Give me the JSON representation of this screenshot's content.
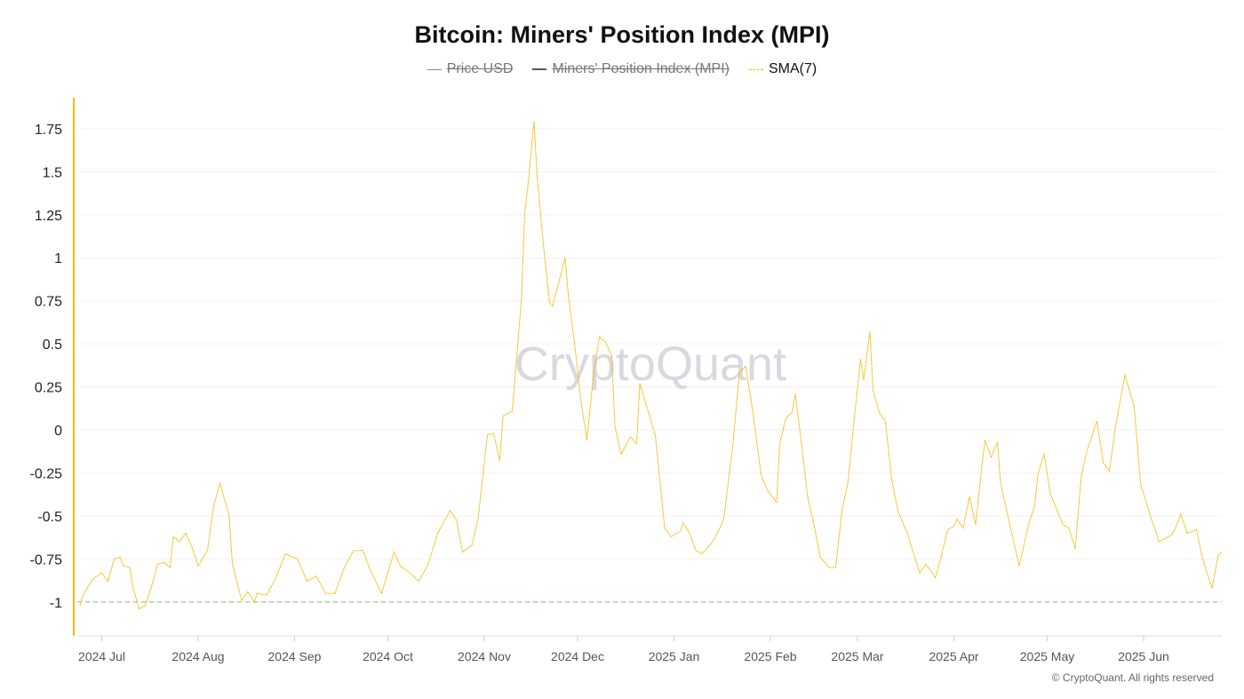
{
  "chart_data": {
    "type": "line",
    "title": "Bitcoin: Miners' Position Index (MPI)",
    "legend": [
      {
        "name": "Price USD",
        "hidden": true,
        "color": "#8a8a8a"
      },
      {
        "name": "Miners' Position Index (MPI)",
        "hidden": true,
        "color": "#555b66"
      },
      {
        "name": "SMA(7)",
        "hidden": false,
        "color": "#f5b800"
      }
    ],
    "legend_placement": "top-center",
    "x_start_date": "2024-06-24",
    "x_unit": "days since start",
    "x_ticks": [
      {
        "day": 7,
        "label": "2024 Jul"
      },
      {
        "day": 38,
        "label": "2024 Aug"
      },
      {
        "day": 69,
        "label": "2024 Sep"
      },
      {
        "day": 99,
        "label": "2024 Oct"
      },
      {
        "day": 130,
        "label": "2024 Nov"
      },
      {
        "day": 160,
        "label": "2024 Dec"
      },
      {
        "day": 191,
        "label": "2025 Jan"
      },
      {
        "day": 222,
        "label": "2025 Feb"
      },
      {
        "day": 250,
        "label": "2025 Mar"
      },
      {
        "day": 281,
        "label": "2025 Apr"
      },
      {
        "day": 311,
        "label": "2025 May"
      },
      {
        "day": 342,
        "label": "2025 Jun"
      }
    ],
    "y_ticks": [
      1.75,
      1.5,
      1.25,
      1,
      0.75,
      0.5,
      0.25,
      0,
      -0.25,
      -0.5,
      -0.75,
      -1
    ],
    "y_tick_labels": [
      "1.75",
      "1.5",
      "1.25",
      "1",
      "0.75",
      "0.5",
      "0.25",
      "0",
      "-0.25",
      "-0.5",
      "-0.75",
      "-1"
    ],
    "ylim": [
      -1.2,
      1.93
    ],
    "xlim": [
      0,
      367
    ],
    "grid": true,
    "threshold": {
      "value": -1,
      "color": "#7cc47f",
      "style": "dashed"
    },
    "series": [
      {
        "name": "SMA(7)",
        "color": "#f5b800",
        "points": [
          [
            0,
            -1.02
          ],
          [
            1,
            -0.96
          ],
          [
            4,
            -0.87
          ],
          [
            7,
            -0.83
          ],
          [
            9,
            -0.88
          ],
          [
            11,
            -0.75
          ],
          [
            13,
            -0.74
          ],
          [
            14,
            -0.79
          ],
          [
            16,
            -0.8
          ],
          [
            17,
            -0.91
          ],
          [
            19,
            -1.04
          ],
          [
            21,
            -1.02
          ],
          [
            23,
            -0.91
          ],
          [
            25,
            -0.78
          ],
          [
            27,
            -0.77
          ],
          [
            29,
            -0.8
          ],
          [
            30,
            -0.62
          ],
          [
            32,
            -0.65
          ],
          [
            34,
            -0.6
          ],
          [
            36,
            -0.68
          ],
          [
            38,
            -0.79
          ],
          [
            41,
            -0.7
          ],
          [
            43,
            -0.44
          ],
          [
            45,
            -0.31
          ],
          [
            48,
            -0.5
          ],
          [
            49,
            -0.78
          ],
          [
            52,
            -0.99
          ],
          [
            54,
            -0.94
          ],
          [
            56,
            -1.0
          ],
          [
            57,
            -0.95
          ],
          [
            60,
            -0.96
          ],
          [
            63,
            -0.86
          ],
          [
            66,
            -0.72
          ],
          [
            70,
            -0.75
          ],
          [
            73,
            -0.88
          ],
          [
            76,
            -0.85
          ],
          [
            79,
            -0.95
          ],
          [
            82,
            -0.95
          ],
          [
            85,
            -0.8
          ],
          [
            88,
            -0.7
          ],
          [
            91,
            -0.7
          ],
          [
            93,
            -0.8
          ],
          [
            97,
            -0.95
          ],
          [
            101,
            -0.71
          ],
          [
            103,
            -0.79
          ],
          [
            106,
            -0.83
          ],
          [
            109,
            -0.88
          ],
          [
            112,
            -0.78
          ],
          [
            115,
            -0.6
          ],
          [
            119,
            -0.47
          ],
          [
            121,
            -0.52
          ],
          [
            123,
            -0.71
          ],
          [
            126,
            -0.67
          ],
          [
            128,
            -0.52
          ],
          [
            131,
            -0.03
          ],
          [
            133,
            -0.02
          ],
          [
            135,
            -0.18
          ],
          [
            136,
            0.08
          ],
          [
            139,
            0.11
          ],
          [
            140,
            0.33
          ],
          [
            142,
            0.77
          ],
          [
            143,
            1.26
          ],
          [
            144,
            1.41
          ],
          [
            146,
            1.79
          ],
          [
            147,
            1.47
          ],
          [
            149,
            1.08
          ],
          [
            151,
            0.74
          ],
          [
            152,
            0.72
          ],
          [
            154,
            0.86
          ],
          [
            156,
            1.0
          ],
          [
            157,
            0.79
          ],
          [
            159,
            0.51
          ],
          [
            161,
            0.18
          ],
          [
            163,
            -0.06
          ],
          [
            165,
            0.3
          ],
          [
            167,
            0.54
          ],
          [
            169,
            0.51
          ],
          [
            171,
            0.43
          ],
          [
            172,
            0.02
          ],
          [
            174,
            -0.14
          ],
          [
            177,
            -0.04
          ],
          [
            179,
            -0.08
          ],
          [
            180,
            0.27
          ],
          [
            182,
            0.15
          ],
          [
            185,
            -0.03
          ],
          [
            188,
            -0.57
          ],
          [
            190,
            -0.62
          ],
          [
            193,
            -0.59
          ],
          [
            194,
            -0.54
          ],
          [
            196,
            -0.6
          ],
          [
            198,
            -0.7
          ],
          [
            200,
            -0.72
          ],
          [
            203,
            -0.66
          ],
          [
            205,
            -0.6
          ],
          [
            207,
            -0.52
          ],
          [
            210,
            -0.08
          ],
          [
            212,
            0.33
          ],
          [
            214,
            0.37
          ],
          [
            216,
            0.15
          ],
          [
            219,
            -0.26
          ],
          [
            221,
            -0.35
          ],
          [
            224,
            -0.42
          ],
          [
            225,
            -0.08
          ],
          [
            227,
            0.07
          ],
          [
            229,
            0.1
          ],
          [
            230,
            0.21
          ],
          [
            232,
            -0.08
          ],
          [
            234,
            -0.39
          ],
          [
            236,
            -0.55
          ],
          [
            238,
            -0.74
          ],
          [
            241,
            -0.8
          ],
          [
            243,
            -0.8
          ],
          [
            245,
            -0.47
          ],
          [
            247,
            -0.3
          ],
          [
            249,
            0.07
          ],
          [
            251,
            0.41
          ],
          [
            252,
            0.29
          ],
          [
            254,
            0.57
          ],
          [
            255,
            0.23
          ],
          [
            257,
            0.1
          ],
          [
            259,
            0.05
          ],
          [
            261,
            -0.29
          ],
          [
            263,
            -0.47
          ],
          [
            266,
            -0.6
          ],
          [
            270,
            -0.83
          ],
          [
            272,
            -0.78
          ],
          [
            274,
            -0.83
          ],
          [
            275,
            -0.86
          ],
          [
            277,
            -0.73
          ],
          [
            279,
            -0.58
          ],
          [
            281,
            -0.56
          ],
          [
            282,
            -0.52
          ],
          [
            284,
            -0.57
          ],
          [
            286,
            -0.39
          ],
          [
            288,
            -0.55
          ],
          [
            290,
            -0.21
          ],
          [
            291,
            -0.06
          ],
          [
            293,
            -0.16
          ],
          [
            295,
            -0.07
          ],
          [
            296,
            -0.31
          ],
          [
            299,
            -0.55
          ],
          [
            302,
            -0.79
          ],
          [
            305,
            -0.55
          ],
          [
            307,
            -0.44
          ],
          [
            308,
            -0.26
          ],
          [
            310,
            -0.14
          ],
          [
            312,
            -0.37
          ],
          [
            316,
            -0.55
          ],
          [
            318,
            -0.57
          ],
          [
            320,
            -0.69
          ],
          [
            322,
            -0.26
          ],
          [
            324,
            -0.11
          ],
          [
            327,
            0.05
          ],
          [
            329,
            -0.19
          ],
          [
            331,
            -0.24
          ],
          [
            333,
            0.02
          ],
          [
            336,
            0.32
          ],
          [
            339,
            0.13
          ],
          [
            341,
            -0.31
          ],
          [
            344,
            -0.49
          ],
          [
            347,
            -0.65
          ],
          [
            351,
            -0.61
          ],
          [
            352,
            -0.58
          ],
          [
            354,
            -0.49
          ],
          [
            356,
            -0.6
          ],
          [
            359,
            -0.58
          ],
          [
            361,
            -0.75
          ],
          [
            364,
            -0.92
          ],
          [
            366,
            -0.73
          ],
          [
            367,
            -0.71
          ]
        ]
      }
    ],
    "watermark": "CryptoQuant",
    "copyright": "© CryptoQuant. All rights reserved"
  }
}
